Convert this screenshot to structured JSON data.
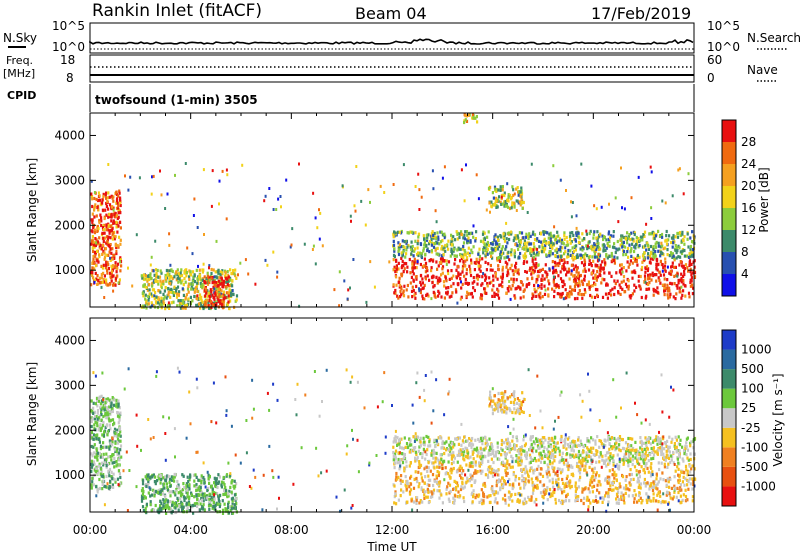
{
  "header": {
    "station": "Rankin Inlet (fitACF)",
    "beam": "Beam 04",
    "date": "17/Feb/2019"
  },
  "noise_panel": {
    "left_label": "N.Sky",
    "right_label": "N.Search",
    "left_ticks": [
      "10^5",
      "10^0"
    ],
    "right_ticks": [
      "10^5",
      "10^0"
    ],
    "scale": "log"
  },
  "freq_panel": {
    "left_label_1": "Freq.",
    "left_label_2": "[MHz]",
    "right_label": "Nave",
    "left_ticks": [
      "18",
      "8"
    ],
    "right_ticks": [
      "60",
      "0"
    ]
  },
  "cpid": {
    "label": "CPID",
    "program": "twofsound (1-min) 3505"
  },
  "time_axis": {
    "ticks": [
      "00:00",
      "04:00",
      "08:00",
      "12:00",
      "16:00",
      "20:00",
      "00:00"
    ],
    "title": "Time UT"
  },
  "range_axis": {
    "ticks": [
      "1000",
      "2000",
      "3000",
      "4000"
    ],
    "title": "Slant Range [km]"
  },
  "power_scale": {
    "title": "Power [dB]",
    "ticks": [
      "4",
      "8",
      "12",
      "16",
      "20",
      "24",
      "28"
    ],
    "colors": [
      "#1010e8",
      "#2850b0",
      "#3c8a6a",
      "#8ccc3c",
      "#f2d21a",
      "#f5a020",
      "#f06a10",
      "#e81010"
    ]
  },
  "velocity_scale": {
    "title": "Velocity [m s⁻¹]",
    "ticks": [
      "1000",
      "500",
      "100",
      "25",
      "-25",
      "-100",
      "-500",
      "-1000"
    ],
    "colors": [
      "#1e3cc8",
      "#2a6aa0",
      "#3c8a6a",
      "#6cc83c",
      "#c8c8c8",
      "#f5c020",
      "#f08020",
      "#e85010",
      "#e81010"
    ]
  },
  "chart_data": {
    "type": "heatmap",
    "x": {
      "label": "Time UT",
      "range": [
        "00:00",
        "24:00"
      ]
    },
    "y": {
      "label": "Slant Range [km]",
      "range": [
        180,
        4500
      ]
    },
    "panels": [
      {
        "name": "Power [dB]",
        "range": [
          0,
          30
        ],
        "echo_regions": [
          {
            "t_start": 0.0,
            "t_end": 1.2,
            "r_min": 700,
            "r_max": 2800,
            "value": 24
          },
          {
            "t_start": 2.0,
            "t_end": 5.8,
            "r_min": 180,
            "r_max": 1050,
            "value": 14
          },
          {
            "t_start": 4.5,
            "t_end": 5.5,
            "r_min": 180,
            "r_max": 900,
            "value": 28
          },
          {
            "t_start": 12.0,
            "t_end": 24.0,
            "r_min": 400,
            "r_max": 1300,
            "value": 28
          },
          {
            "t_start": 12.0,
            "t_end": 24.0,
            "r_min": 1300,
            "r_max": 1900,
            "value": 12
          },
          {
            "t_start": 15.8,
            "t_end": 17.2,
            "r_min": 2400,
            "r_max": 2900,
            "value": 14
          },
          {
            "t_start": 14.8,
            "t_end": 15.4,
            "r_min": 4300,
            "r_max": 4500,
            "value": 18
          }
        ]
      },
      {
        "name": "Velocity [m s-1]",
        "range": [
          -1000,
          1000
        ],
        "echo_regions": [
          {
            "t_start": 0.0,
            "t_end": 1.2,
            "r_min": 700,
            "r_max": 2800,
            "value": 200
          },
          {
            "t_start": 2.0,
            "t_end": 5.8,
            "r_min": 180,
            "r_max": 1050,
            "value": 300
          },
          {
            "t_start": 12.0,
            "t_end": 24.0,
            "r_min": 400,
            "r_max": 1300,
            "value": -200
          },
          {
            "t_start": 12.0,
            "t_end": 24.0,
            "r_min": 1300,
            "r_max": 1900,
            "value": 0
          },
          {
            "t_start": 15.8,
            "t_end": 17.2,
            "r_min": 2400,
            "r_max": 2900,
            "value": -150
          }
        ]
      }
    ]
  }
}
